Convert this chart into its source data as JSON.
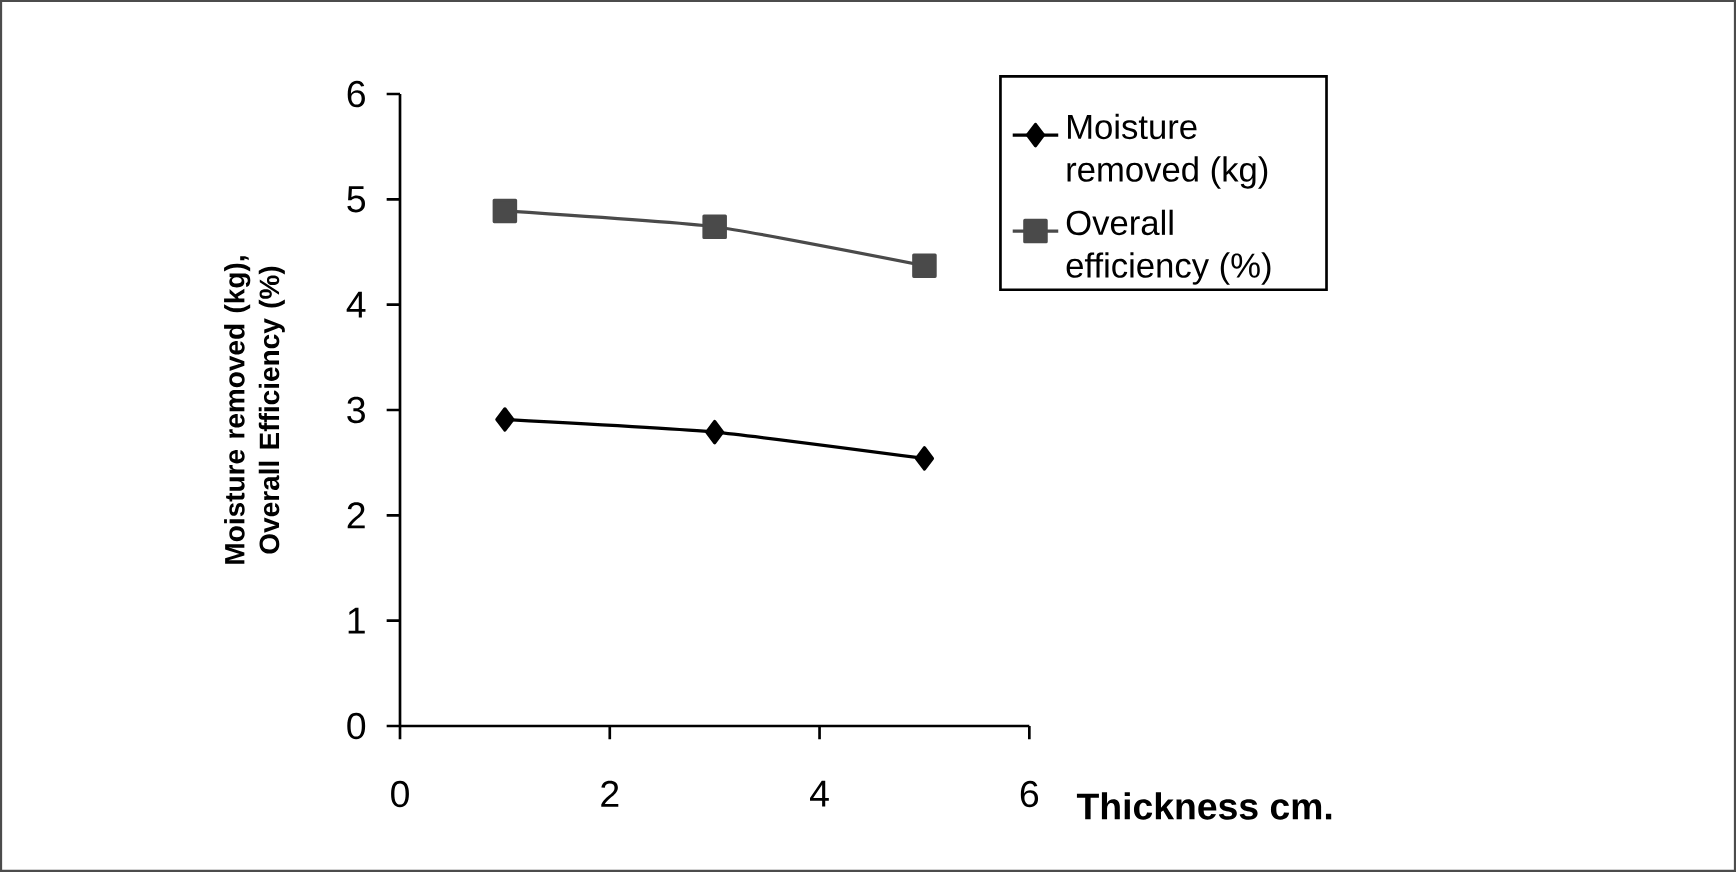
{
  "chart_data": {
    "type": "line",
    "xlabel": "Thickness cm.",
    "ylabel": "Moisture removed (kg), Overall Efficiency (%)",
    "x": [
      1,
      3,
      5
    ],
    "series": [
      {
        "name": "Moisture removed (kg)",
        "color": "#000000",
        "marker": "diamond",
        "values": [
          2.91,
          2.79,
          2.54
        ]
      },
      {
        "name": "Overall efficiency (%)",
        "color": "#4a4a4a",
        "marker": "square",
        "values": [
          4.89,
          4.74,
          4.37
        ]
      }
    ],
    "xlim": [
      0,
      6
    ],
    "ylim": [
      0,
      6
    ],
    "xticks": [
      0,
      2,
      4,
      6
    ],
    "yticks": [
      0,
      1,
      2,
      3,
      4,
      5,
      6
    ],
    "grid": false,
    "legend": "top right",
    "line_style": "solid"
  }
}
